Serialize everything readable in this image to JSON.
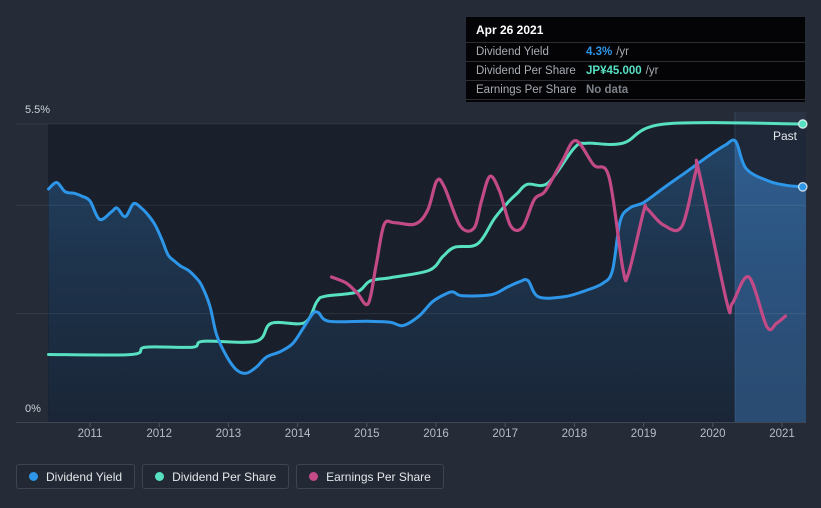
{
  "tooltip": {
    "date": "Apr 26 2021",
    "rows": [
      {
        "label": "Dividend Yield",
        "value": "4.3%",
        "suffix": "/yr",
        "color": "#2d96e8"
      },
      {
        "label": "Dividend Per Share",
        "value": "JP¥45.000",
        "suffix": "/yr",
        "color": "#57e0c2"
      },
      {
        "label": "Earnings Per Share",
        "value": "No data",
        "suffix": "",
        "color": "#7d838a"
      }
    ]
  },
  "axis": {
    "y_top_label": "5.5%",
    "y_bottom_label": "0%",
    "x_labels": [
      "2011",
      "2012",
      "2013",
      "2014",
      "2015",
      "2016",
      "2017",
      "2018",
      "2019",
      "2020",
      "2021"
    ]
  },
  "annotations": {
    "past_label": "Past"
  },
  "legend": {
    "items": [
      {
        "label": "Dividend Yield",
        "color": "#2d96e8"
      },
      {
        "label": "Dividend Per Share",
        "color": "#57e0c2"
      },
      {
        "label": "Earnings Per Share",
        "color": "#c24a86"
      }
    ]
  },
  "colors": {
    "page_bg": "#252c37",
    "plot_bg": "#19202b",
    "gridline": "rgba(255,255,255,0.08)",
    "axis_line": "#3f4754",
    "yield_blue": "#2d96e8",
    "dps_teal": "#57e0c2",
    "eps_pink": "#c24a86"
  },
  "chart_data": {
    "type": "line",
    "title": "",
    "x_axis": {
      "unit": "year",
      "range": [
        2010.4,
        2021.35
      ],
      "ticks": [
        2011,
        2012,
        2013,
        2014,
        2015,
        2016,
        2017,
        2018,
        2019,
        2020,
        2021
      ]
    },
    "y_axis_percent": {
      "range": [
        0,
        5.5
      ],
      "labels_shown": [
        "5.5%",
        "0%"
      ],
      "gridlines_at_pct": [
        0,
        2,
        4,
        5.5
      ]
    },
    "y_axis_share_jpy": {
      "range": [
        0,
        45
      ]
    },
    "legend_position": "bottom-left",
    "highlight_band": {
      "x_start_year": 2020.32,
      "x_end_year": 2021.35
    },
    "series": [
      {
        "name": "Dividend Yield",
        "unit": "%",
        "axis_max": 5.5,
        "color": "#2d96e8",
        "area_fill": true,
        "end_marker": true,
        "points": [
          [
            2010.4,
            4.3
          ],
          [
            2010.52,
            4.42
          ],
          [
            2010.64,
            4.25
          ],
          [
            2010.78,
            4.22
          ],
          [
            2010.88,
            4.17
          ],
          [
            2011.0,
            4.08
          ],
          [
            2011.14,
            3.74
          ],
          [
            2011.31,
            3.88
          ],
          [
            2011.39,
            3.95
          ],
          [
            2011.51,
            3.79
          ],
          [
            2011.63,
            4.03
          ],
          [
            2011.75,
            3.94
          ],
          [
            2011.84,
            3.82
          ],
          [
            2011.94,
            3.64
          ],
          [
            2012.04,
            3.36
          ],
          [
            2012.13,
            3.08
          ],
          [
            2012.23,
            2.96
          ],
          [
            2012.32,
            2.87
          ],
          [
            2012.42,
            2.8
          ],
          [
            2012.52,
            2.68
          ],
          [
            2012.61,
            2.53
          ],
          [
            2012.73,
            2.15
          ],
          [
            2012.83,
            1.61
          ],
          [
            2012.98,
            1.2
          ],
          [
            2013.12,
            0.96
          ],
          [
            2013.26,
            0.9
          ],
          [
            2013.41,
            1.02
          ],
          [
            2013.55,
            1.2
          ],
          [
            2013.75,
            1.3
          ],
          [
            2013.93,
            1.45
          ],
          [
            2014.08,
            1.73
          ],
          [
            2014.22,
            2.0
          ],
          [
            2014.3,
            2.02
          ],
          [
            2014.45,
            1.86
          ],
          [
            2015.0,
            1.86
          ],
          [
            2015.34,
            1.84
          ],
          [
            2015.52,
            1.78
          ],
          [
            2015.75,
            1.95
          ],
          [
            2015.95,
            2.22
          ],
          [
            2016.15,
            2.37
          ],
          [
            2016.25,
            2.4
          ],
          [
            2016.38,
            2.33
          ],
          [
            2016.8,
            2.35
          ],
          [
            2017.03,
            2.49
          ],
          [
            2017.21,
            2.59
          ],
          [
            2017.33,
            2.61
          ],
          [
            2017.48,
            2.31
          ],
          [
            2017.85,
            2.31
          ],
          [
            2018.15,
            2.42
          ],
          [
            2018.41,
            2.56
          ],
          [
            2018.55,
            2.8
          ],
          [
            2018.66,
            3.7
          ],
          [
            2018.8,
            3.95
          ],
          [
            2019.0,
            4.05
          ],
          [
            2019.3,
            4.33
          ],
          [
            2019.6,
            4.6
          ],
          [
            2019.95,
            4.92
          ],
          [
            2020.18,
            5.11
          ],
          [
            2020.33,
            5.18
          ],
          [
            2020.48,
            4.68
          ],
          [
            2020.8,
            4.45
          ],
          [
            2021.05,
            4.37
          ],
          [
            2021.3,
            4.34
          ]
        ]
      },
      {
        "name": "Dividend Per Share",
        "unit": "JP¥",
        "axis_max": 45,
        "color": "#57e0c2",
        "area_fill": false,
        "end_marker": true,
        "points": [
          [
            2010.4,
            10.2
          ],
          [
            2011.6,
            10.2
          ],
          [
            2011.8,
            11.3
          ],
          [
            2012.48,
            11.3
          ],
          [
            2012.64,
            12.2
          ],
          [
            2013.4,
            12.2
          ],
          [
            2013.62,
            14.9
          ],
          [
            2014.1,
            15.0
          ],
          [
            2014.28,
            18.2
          ],
          [
            2014.4,
            19.0
          ],
          [
            2014.85,
            19.6
          ],
          [
            2015.05,
            21.3
          ],
          [
            2015.35,
            21.8
          ],
          [
            2015.9,
            22.9
          ],
          [
            2016.1,
            25.0
          ],
          [
            2016.27,
            26.4
          ],
          [
            2016.6,
            26.9
          ],
          [
            2016.85,
            30.8
          ],
          [
            2017.05,
            33.3
          ],
          [
            2017.18,
            34.6
          ],
          [
            2017.32,
            35.9
          ],
          [
            2017.62,
            36.1
          ],
          [
            2018.0,
            41.4
          ],
          [
            2018.18,
            42.1
          ],
          [
            2018.7,
            42.1
          ],
          [
            2019.3,
            45.0
          ],
          [
            2021.3,
            45.0
          ]
        ]
      },
      {
        "name": "Earnings Per Share",
        "unit": "JP¥",
        "axis_max": 45,
        "color": "#c24a86",
        "area_fill": false,
        "end_marker": false,
        "points": [
          [
            2014.49,
            21.9
          ],
          [
            2014.7,
            21.0
          ],
          [
            2014.86,
            19.5
          ],
          [
            2015.02,
            17.9
          ],
          [
            2015.14,
            24.0
          ],
          [
            2015.25,
            29.8
          ],
          [
            2015.4,
            30.1
          ],
          [
            2015.7,
            29.9
          ],
          [
            2015.88,
            32.0
          ],
          [
            2016.01,
            36.4
          ],
          [
            2016.12,
            35.5
          ],
          [
            2016.35,
            29.6
          ],
          [
            2016.55,
            29.3
          ],
          [
            2016.66,
            33.5
          ],
          [
            2016.78,
            37.1
          ],
          [
            2016.92,
            34.8
          ],
          [
            2017.08,
            29.6
          ],
          [
            2017.25,
            29.4
          ],
          [
            2017.42,
            33.6
          ],
          [
            2017.58,
            34.9
          ],
          [
            2017.82,
            39.3
          ],
          [
            2018.02,
            42.5
          ],
          [
            2018.28,
            38.8
          ],
          [
            2018.5,
            37.0
          ],
          [
            2018.7,
            23.2
          ],
          [
            2018.78,
            22.4
          ],
          [
            2019.0,
            31.8
          ],
          [
            2019.05,
            32.2
          ],
          [
            2019.28,
            29.8
          ],
          [
            2019.55,
            29.5
          ],
          [
            2019.75,
            37.6
          ],
          [
            2019.8,
            37.8
          ],
          [
            2020.2,
            18.2
          ],
          [
            2020.28,
            17.9
          ],
          [
            2020.52,
            21.9
          ],
          [
            2020.78,
            14.4
          ],
          [
            2020.92,
            14.9
          ],
          [
            2021.05,
            16.0
          ]
        ]
      }
    ]
  }
}
